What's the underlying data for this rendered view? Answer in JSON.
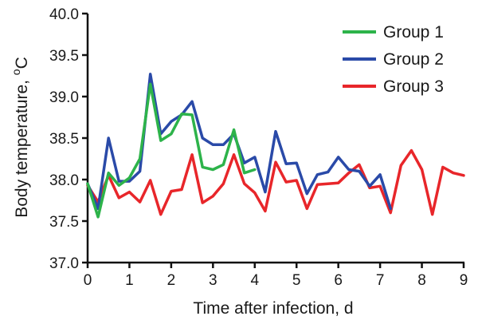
{
  "chart_data": {
    "type": "line",
    "xlabel": "Time after infection, d",
    "ylabel": "Body temperature, °C",
    "ylabel_parts": [
      "Body temperature, ",
      "o",
      "C"
    ],
    "xlim": [
      0,
      9
    ],
    "ylim": [
      37.0,
      40.0
    ],
    "xticks": [
      0,
      1,
      2,
      3,
      4,
      5,
      6,
      7,
      8,
      9
    ],
    "yticks": [
      37.0,
      37.5,
      38.0,
      38.5,
      39.0,
      39.5,
      40.0
    ],
    "ytick_labels": [
      "37.0",
      "37.5",
      "38.0",
      "38.5",
      "39.0",
      "39.5",
      "40.0"
    ],
    "xtick_labels": [
      "0",
      "1",
      "2",
      "3",
      "4",
      "5",
      "6",
      "7",
      "8",
      "9"
    ],
    "grid": false,
    "legend_position": "top-right",
    "series": [
      {
        "name": "Group 1",
        "color": "#2db34a",
        "x": [
          0,
          0.25,
          0.5,
          0.75,
          1,
          1.25,
          1.5,
          1.75,
          2,
          2.25,
          2.5,
          2.75,
          3,
          3.25,
          3.5,
          3.75,
          4
        ],
        "y": [
          37.95,
          37.55,
          38.08,
          37.93,
          38.02,
          38.25,
          39.15,
          38.47,
          38.55,
          38.79,
          38.78,
          38.15,
          38.12,
          38.18,
          38.6,
          38.08,
          38.12
        ]
      },
      {
        "name": "Group 2",
        "color": "#2a4aa8",
        "x": [
          0,
          0.25,
          0.5,
          0.75,
          1,
          1.25,
          1.5,
          1.75,
          2,
          2.25,
          2.5,
          2.75,
          3,
          3.25,
          3.5,
          3.75,
          4,
          4.25,
          4.5,
          4.75,
          5,
          5.25,
          5.5,
          5.75,
          6,
          6.25,
          6.5,
          6.75,
          7,
          7.25
        ],
        "y": [
          37.95,
          37.65,
          38.5,
          37.98,
          37.98,
          38.1,
          39.27,
          38.55,
          38.7,
          38.78,
          38.94,
          38.5,
          38.42,
          38.42,
          38.55,
          38.2,
          38.27,
          37.85,
          38.58,
          38.19,
          38.2,
          37.83,
          38.06,
          38.09,
          38.27,
          38.12,
          38.1,
          37.92,
          38.06,
          37.65
        ]
      },
      {
        "name": "Group 3",
        "color": "#e8262a",
        "x": [
          0,
          0.25,
          0.5,
          0.75,
          1,
          1.25,
          1.5,
          1.75,
          2,
          2.25,
          2.5,
          2.75,
          3,
          3.25,
          3.5,
          3.75,
          4,
          4.25,
          4.5,
          4.75,
          5,
          5.25,
          5.5,
          5.75,
          6,
          6.25,
          6.5,
          6.75,
          7,
          7.25,
          7.5,
          7.75,
          8,
          8.25,
          8.5,
          8.75,
          9
        ],
        "y": [
          37.93,
          37.73,
          38.05,
          37.78,
          37.85,
          37.73,
          37.99,
          37.58,
          37.86,
          37.88,
          38.3,
          37.72,
          37.8,
          37.95,
          38.3,
          37.95,
          37.84,
          37.62,
          38.21,
          37.97,
          37.99,
          37.65,
          37.94,
          37.95,
          37.96,
          38.08,
          38.18,
          37.9,
          37.92,
          37.6,
          38.17,
          38.35,
          38.12,
          37.58,
          38.15,
          38.08,
          38.05
        ]
      }
    ]
  }
}
